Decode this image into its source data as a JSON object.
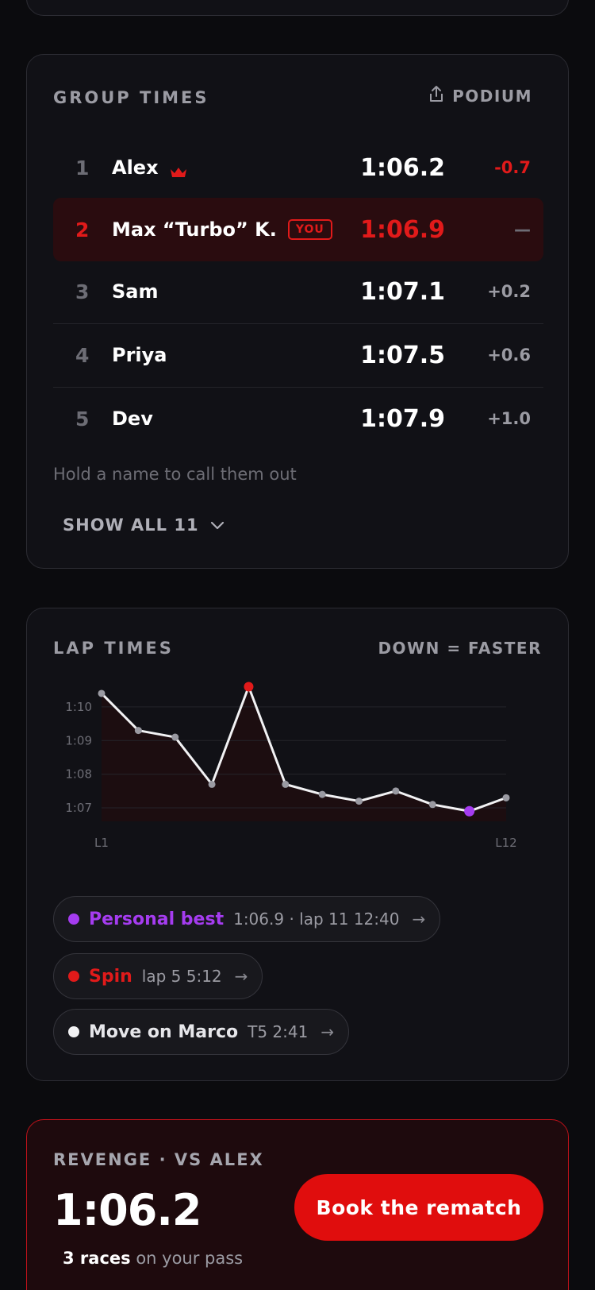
{
  "group_times": {
    "title": "GROUP TIMES",
    "podium_label": "PODIUM",
    "rows": [
      {
        "rank": "1",
        "name": "Alex",
        "time": "1:06.2",
        "gap": "-0.7"
      },
      {
        "rank": "2",
        "name": "Max “Turbo” K.",
        "badge": "YOU",
        "time": "1:06.9",
        "gap": "—"
      },
      {
        "rank": "3",
        "name": "Sam",
        "time": "1:07.1",
        "gap": "+0.2"
      },
      {
        "rank": "4",
        "name": "Priya",
        "time": "1:07.5",
        "gap": "+0.6"
      },
      {
        "rank": "5",
        "name": "Dev",
        "time": "1:07.9",
        "gap": "+1.0"
      }
    ],
    "hint": "Hold a name to call them out",
    "show_all": "SHOW ALL 11"
  },
  "lap_times": {
    "title": "LAP TIMES",
    "note": "DOWN = FASTER",
    "pills": [
      {
        "label": "Personal best",
        "meta": "1:06.9 · lap 11  12:40",
        "color": "#a53cf0"
      },
      {
        "label": "Spin",
        "meta": "lap 5  5:12",
        "color": "#e11a1a"
      },
      {
        "label": "Move on Marco",
        "meta": "T5  2:41",
        "color": "#f2f2f4"
      }
    ],
    "arrow": "→"
  },
  "chart_data": {
    "type": "line",
    "x": [
      "L1",
      "L2",
      "L3",
      "L4",
      "L5",
      "L6",
      "L7",
      "L8",
      "L9",
      "L10",
      "L11",
      "L12"
    ],
    "x_tick_labels": [
      "L1",
      "L12"
    ],
    "values": [
      70.4,
      69.3,
      69.1,
      67.7,
      70.6,
      67.7,
      67.4,
      67.2,
      67.5,
      67.1,
      66.9,
      67.3
    ],
    "y_tick_labels": [
      "1:10",
      "1:09",
      "1:08",
      "1:07"
    ],
    "y_ticks": [
      70,
      69,
      68,
      67
    ],
    "ylim": [
      66.6,
      70.8
    ],
    "highlights": {
      "spin_lap_index": 4,
      "best_lap_index": 10
    },
    "colors": {
      "line": "#f2f2f4",
      "point": "#9a9aa2",
      "spin": "#e11a1a",
      "best": "#a53cf0",
      "area": "#1c0d10",
      "grid": "#24242a"
    },
    "grid": true
  },
  "revenge": {
    "title": "REVENGE · VS ALEX",
    "time": "1:06.2",
    "races_bold": "3 races",
    "races_rest": " on your pass",
    "button": "Book the rematch"
  }
}
